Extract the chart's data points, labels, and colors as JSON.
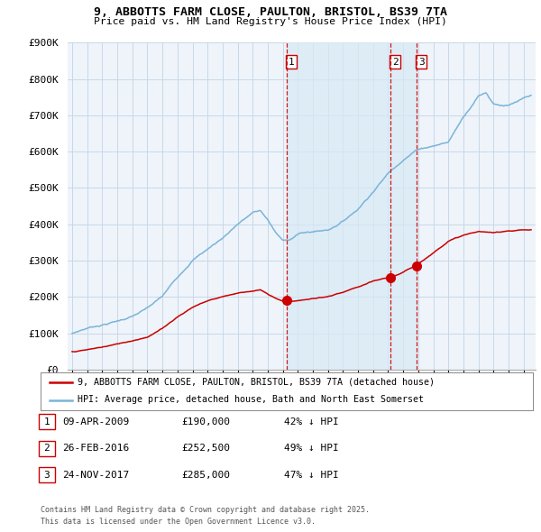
{
  "title_line1": "9, ABBOTTS FARM CLOSE, PAULTON, BRISTOL, BS39 7TA",
  "title_line2": "Price paid vs. HM Land Registry's House Price Index (HPI)",
  "ylim": [
    0,
    900000
  ],
  "yticks": [
    0,
    100000,
    200000,
    300000,
    400000,
    500000,
    600000,
    700000,
    800000,
    900000
  ],
  "ytick_labels": [
    "£0",
    "£100K",
    "£200K",
    "£300K",
    "£400K",
    "£500K",
    "£600K",
    "£700K",
    "£800K",
    "£900K"
  ],
  "hpi_color": "#7ab4d8",
  "hpi_fill_color": "#d8eaf5",
  "price_color": "#cc0000",
  "vline_color": "#cc0000",
  "background_color": "#ffffff",
  "grid_color": "#c8d8e8",
  "plot_bg_color": "#eef4fa",
  "legend_label_price": "9, ABBOTTS FARM CLOSE, PAULTON, BRISTOL, BS39 7TA (detached house)",
  "legend_label_hpi": "HPI: Average price, detached house, Bath and North East Somerset",
  "sales": [
    {
      "num": 1,
      "date_label": "09-APR-2009",
      "price": 190000,
      "pct": "42%",
      "x_year": 2009.27
    },
    {
      "num": 2,
      "date_label": "26-FEB-2016",
      "price": 252500,
      "pct": "49%",
      "x_year": 2016.15
    },
    {
      "num": 3,
      "date_label": "24-NOV-2017",
      "price": 285000,
      "pct": "47%",
      "x_year": 2017.9
    }
  ],
  "footer_line1": "Contains HM Land Registry data © Crown copyright and database right 2025.",
  "footer_line2": "This data is licensed under the Open Government Licence v3.0.",
  "xlim_start": 1994.7,
  "xlim_end": 2025.8
}
